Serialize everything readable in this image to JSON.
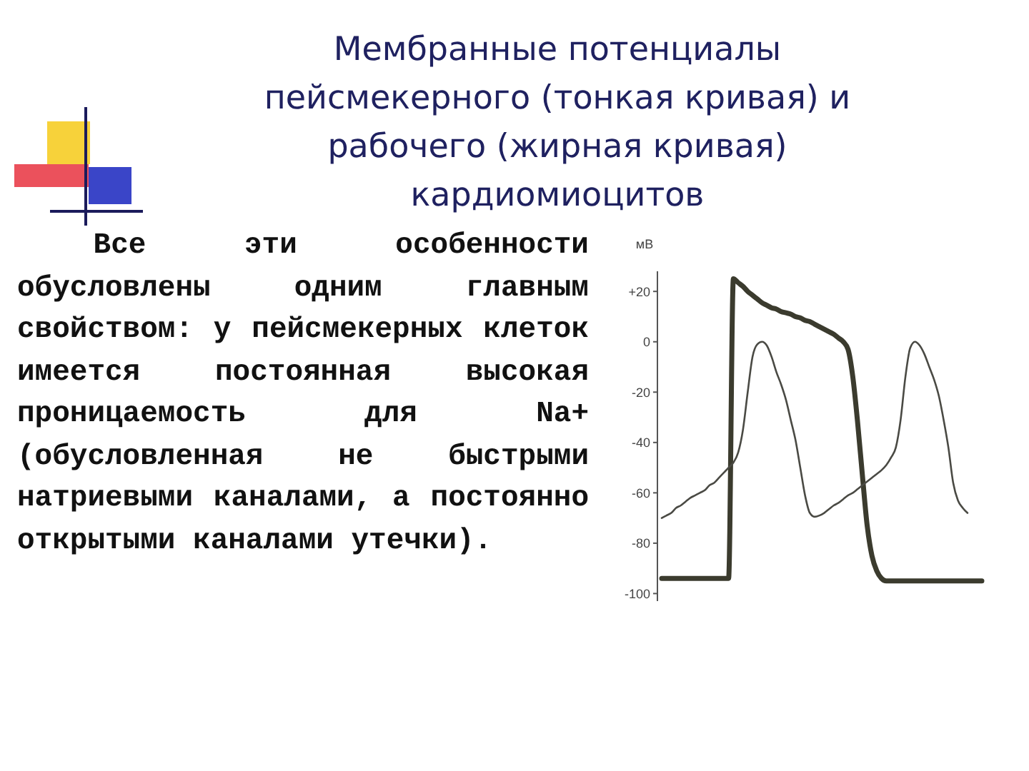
{
  "chart_data": {
    "type": "line",
    "title": "Мембранные потенциалы пейсмекерного (тонкая кривая) и рабочего (жирная кривая) кардиомиоцитов",
    "ylabel": "мВ",
    "annotations": [
      "Все эти особенности обусловлены одним главным свойством: у пейсмекерных клеток имеется постоянная высокая проницаемость для Na+ (обусловленная не быстрыми натриевыми каналами, а постоянно открытыми каналами утечки)."
    ],
    "categories": [
      null,
      null,
      null,
      null,
      null,
      null,
      null,
      null,
      null,
      null,
      null,
      null,
      null,
      null,
      null,
      null,
      null,
      null,
      null,
      null,
      null,
      null,
      null,
      null,
      null,
      null,
      null,
      null,
      null,
      null,
      null,
      null,
      null,
      null,
      null,
      null,
      null,
      null,
      null,
      null,
      null,
      null,
      null,
      null,
      null,
      null,
      null,
      null,
      null,
      null,
      null,
      null,
      null,
      null,
      null,
      null,
      null,
      null,
      null,
      null,
      null,
      null,
      null,
      null,
      null,
      null,
      null,
      null
    ],
    "tick_labels": "y",
    "ylim": [
      -103,
      28
    ],
    "yticks": [
      {
        "value": 20,
        "label": "+20"
      },
      0,
      -20,
      -40,
      -60,
      -80,
      -100
    ],
    "series": [
      {
        "color": "#3b3b2e",
        "values": [
          -94,
          -94,
          -94,
          -94,
          -94,
          -94,
          -94,
          -94,
          -94,
          -94,
          -94,
          -94,
          -94,
          -94,
          -94,
          25,
          23.5,
          22,
          20,
          18.5,
          17,
          15.5,
          14.5,
          13.5,
          13,
          12,
          11.5,
          11,
          10,
          9.5,
          8.5,
          8,
          7,
          6,
          5,
          4,
          3,
          1.5,
          0,
          -3,
          -14,
          -32,
          -53,
          -73,
          -85,
          -91,
          -94,
          -95,
          -95,
          -95,
          -95,
          -95,
          -95,
          -95,
          -95,
          -95,
          -95,
          -95,
          -95,
          -95,
          -95,
          -95,
          -95,
          -95,
          -95,
          -95,
          -95,
          -95
        ]
      },
      {
        "color": "#4a4a44",
        "values": [
          -70,
          -69,
          -68,
          -66,
          -65,
          -63.5,
          -62,
          -61,
          -60,
          -59,
          -57,
          -56,
          -54,
          -52,
          -50,
          -48,
          -44,
          -35,
          -20,
          -6,
          -1,
          0,
          -1.5,
          -6,
          -12,
          -17,
          -23,
          -31,
          -39,
          -50,
          -61,
          -68,
          -69.5,
          -69,
          -68,
          -66.5,
          -65,
          -64,
          -62.5,
          -61,
          -60,
          -58.5,
          -57,
          -55.5,
          -54,
          -52.5,
          -51,
          -49,
          -46,
          -42,
          -31,
          -14,
          -2.5,
          0,
          -1.5,
          -5,
          -10,
          -15,
          -21.5,
          -31,
          -42,
          -56,
          -63,
          -66,
          -68,
          null,
          null,
          null
        ]
      }
    ]
  }
}
